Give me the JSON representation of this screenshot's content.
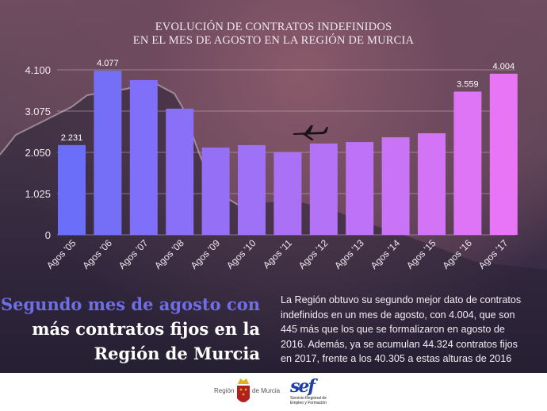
{
  "chart_data": {
    "type": "bar",
    "title": [
      "EVOLUCIÓN DE CONTRATOS INDEFINIDOS",
      "EN EL MES DE AGOSTO EN LA REGIÓN DE MURCIA"
    ],
    "categories": [
      "Agos '05",
      "Agos '06",
      "Agos '07",
      "Agos '08",
      "Agos '09",
      "Agos '10",
      "Agos '11",
      "Agos '12",
      "Agos '13",
      "Agos '14",
      "Agos '15",
      "Agos '16",
      "Agos '17"
    ],
    "values": [
      2231,
      4077,
      3845,
      3135,
      2170,
      2230,
      2050,
      2270,
      2305,
      2425,
      2525,
      3559,
      4004
    ],
    "data_labels": [
      "2.231",
      "4.077",
      "",
      "",
      "",
      "",
      "",
      "",
      "",
      "",
      "",
      "3.559",
      "4.004"
    ],
    "yticks": [
      0,
      1025,
      2050,
      3075,
      4100
    ],
    "ytick_labels": [
      "0",
      "1.025",
      "2.050",
      "3.075",
      "4.100"
    ],
    "ylim": [
      0,
      4100
    ],
    "grid": true,
    "colors": {
      "start": "#6b6ef8",
      "end": "#e874f6"
    }
  },
  "headline": {
    "line1": "Segundo mes de agosto con",
    "line2": "más contratos fijos en la",
    "line3": "Región de Murcia",
    "accent_color": "#6f6ee6"
  },
  "body_lines": [
    "La Región obtuvo su segundo mejor dato de contratos",
    "indefinidos en un mes de agosto, con 4.004, que son",
    "445 más que los que se formalizaron en agosto de",
    "2016. Además, ya se acumulan 44.324 contratos fijos",
    "en 2017, frente a los 40.305 a estas alturas de 2016"
  ],
  "footer": {
    "region_left": "Región",
    "region_right": "de Murcia",
    "sef_logo": "sef",
    "sef_caption1": "Servicio Regional de",
    "sef_caption2": "Empleo y Formación"
  }
}
